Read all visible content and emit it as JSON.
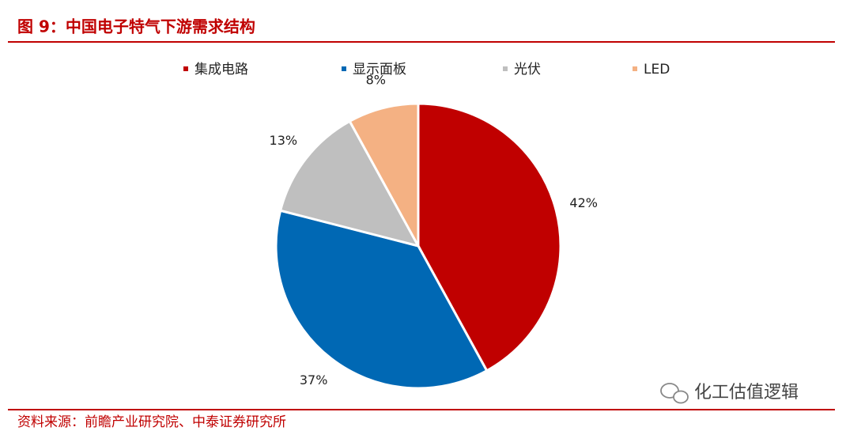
{
  "chart_data": {
    "type": "pie",
    "title": "图 9：中国电子特气下游需求结构",
    "categories": [
      "集成电路",
      "显示面板",
      "光伏",
      "LED"
    ],
    "values": [
      42,
      37,
      13,
      8
    ],
    "value_labels": [
      "42%",
      "37%",
      "13%",
      "8%"
    ],
    "colors": [
      "#c00000",
      "#0068b4",
      "#bfbfbf",
      "#f4b183"
    ],
    "source": "资料来源：前瞻产业研究院、中泰证券研究所",
    "watermark": "化工估值逻辑"
  }
}
